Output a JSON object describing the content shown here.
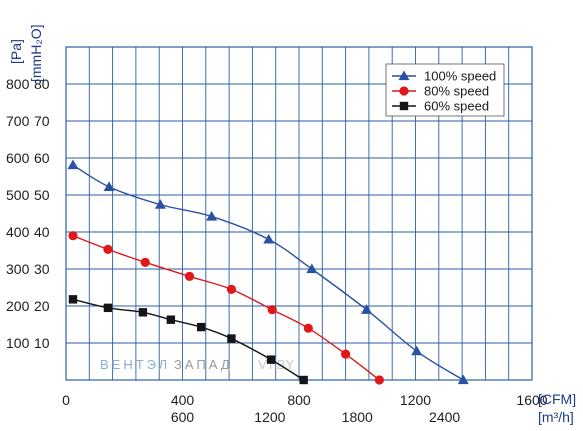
{
  "chart_data": {
    "type": "line",
    "y_unit_pa": "[Pa]",
    "y_unit_mmh2o": "[mmH₂O]",
    "x_unit_cfm": "[CFM]",
    "x_unit_m3h": "[m³/h]",
    "xlim_cfm": [
      0,
      2000
    ],
    "ylim_pa": [
      0,
      900
    ],
    "grid": true,
    "legend_position": "top-right",
    "pa_ticks": [
      "800",
      "700",
      "600",
      "500",
      "400",
      "300",
      "200",
      "100"
    ],
    "mmh2o_ticks": [
      "80",
      "70",
      "60",
      "50",
      "40",
      "30",
      "20",
      "10"
    ],
    "cfm_ticks": [
      "0",
      "400",
      "800",
      "1200",
      "1600"
    ],
    "m3h_ticks": [
      "600",
      "1200",
      "1800",
      "2400"
    ],
    "series": [
      {
        "name": "100%  speed",
        "color": "#2a52a3",
        "marker": "triangle",
        "x": [
          30,
          185,
          405,
          625,
          870,
          1055,
          1290,
          1505,
          1705
        ],
        "y": [
          581,
          522,
          474,
          442,
          380,
          300,
          190,
          78,
          0
        ]
      },
      {
        "name": "80%  speed",
        "color": "#e0181a",
        "marker": "circle",
        "x": [
          30,
          180,
          340,
          530,
          710,
          885,
          1040,
          1200,
          1345
        ],
        "y": [
          390,
          353,
          318,
          280,
          245,
          190,
          140,
          70,
          0
        ]
      },
      {
        "name": "60%  speed",
        "color": "#151515",
        "marker": "square",
        "x": [
          30,
          180,
          330,
          450,
          580,
          710,
          880,
          1020
        ],
        "y": [
          218,
          195,
          183,
          163,
          143,
          112,
          55,
          0
        ]
      }
    ]
  },
  "watermark": {
    "part1": "ВЕНТЭЛ",
    "part2": "ЗАПАД",
    "part3": "VT.BY"
  }
}
